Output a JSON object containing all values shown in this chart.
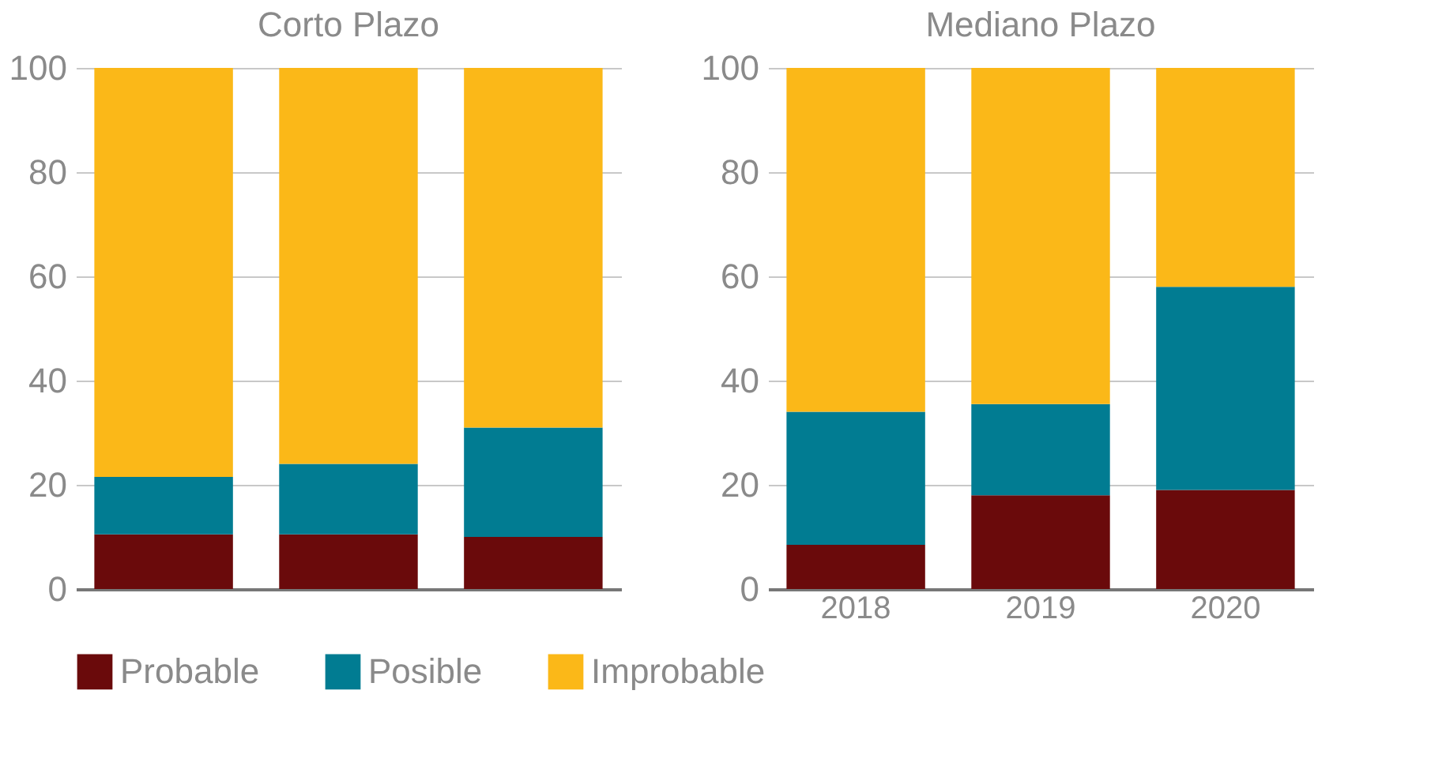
{
  "chart_data": [
    {
      "type": "bar",
      "title": "Corto Plazo",
      "categories": [
        null,
        null,
        null
      ],
      "stacked": true,
      "ylim": [
        0,
        100
      ],
      "yticks": [
        0,
        20,
        40,
        60,
        80,
        100
      ],
      "grid": "y",
      "tick_labels": "y",
      "legend": "bottom",
      "series": [
        {
          "name": "Probable",
          "color": "#6a0a0b",
          "values": [
            10.5,
            10.5,
            10
          ]
        },
        {
          "name": "Posible",
          "color": "#017c92",
          "values": [
            11,
            13.5,
            21
          ]
        },
        {
          "name": "Improbable",
          "color": "#fbb818",
          "values": [
            78.5,
            76,
            69
          ]
        }
      ]
    },
    {
      "type": "bar",
      "title": "Mediano Plazo",
      "categories": [
        "2018",
        "2019",
        "2020"
      ],
      "stacked": true,
      "ylim": [
        0,
        100
      ],
      "yticks": [
        0,
        20,
        40,
        60,
        80,
        100
      ],
      "grid": "y",
      "legend": "bottom",
      "series": [
        {
          "name": "Probable",
          "color": "#6a0a0b",
          "values": [
            8.5,
            18,
            19
          ]
        },
        {
          "name": "Posible",
          "color": "#017c92",
          "values": [
            25.5,
            17.5,
            39
          ]
        },
        {
          "name": "Improbable",
          "color": "#fbb818",
          "values": [
            66,
            64.5,
            42
          ]
        }
      ]
    }
  ]
}
